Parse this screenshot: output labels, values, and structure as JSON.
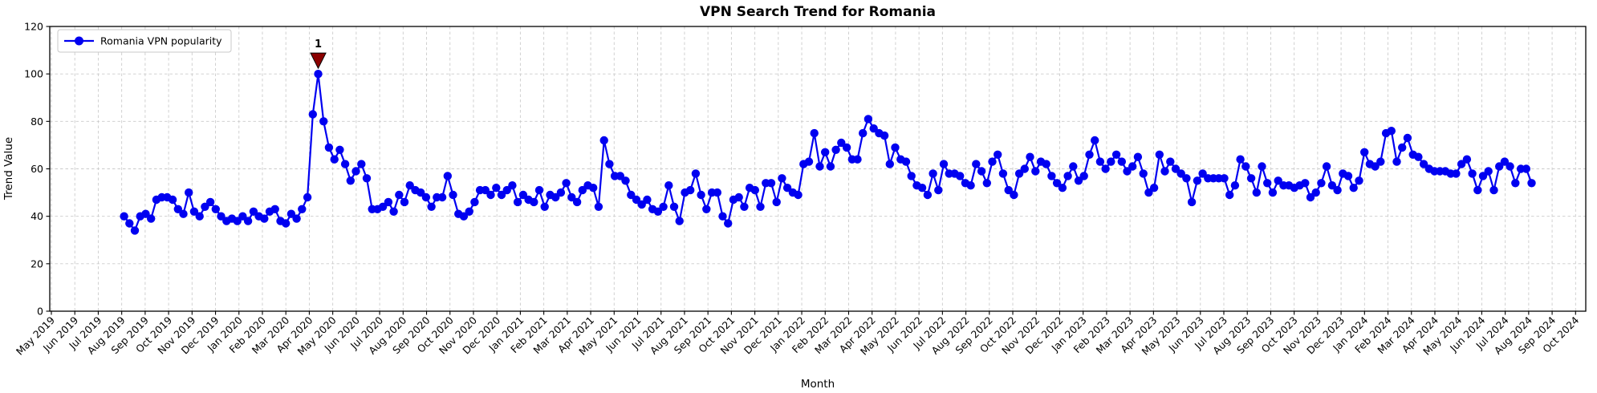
{
  "chart_data": {
    "type": "line",
    "title": "VPN Search Trend for Romania",
    "xlabel": "Month",
    "ylabel": "Trend Value",
    "grid": true,
    "legend_position": "upper left",
    "ylim": [
      0,
      120
    ],
    "yticks": [
      0,
      20,
      40,
      60,
      80,
      100,
      120
    ],
    "x_tick_labels": [
      "May 2019",
      "Jun 2019",
      "Jul 2019",
      "Aug 2019",
      "Sep 2019",
      "Oct 2019",
      "Nov 2019",
      "Dec 2019",
      "Jan 2020",
      "Feb 2020",
      "Mar 2020",
      "Apr 2020",
      "May 2020",
      "Jun 2020",
      "Jul 2020",
      "Aug 2020",
      "Sep 2020",
      "Oct 2020",
      "Nov 2020",
      "Dec 2020",
      "Jan 2021",
      "Feb 2021",
      "Mar 2021",
      "Apr 2021",
      "May 2021",
      "Jun 2021",
      "Jul 2021",
      "Aug 2021",
      "Sep 2021",
      "Oct 2021",
      "Nov 2021",
      "Dec 2021",
      "Jan 2022",
      "Feb 2022",
      "Mar 2022",
      "Apr 2022",
      "May 2022",
      "Jun 2022",
      "Jul 2022",
      "Aug 2022",
      "Sep 2022",
      "Oct 2022",
      "Nov 2022",
      "Dec 2022",
      "Jan 2023",
      "Feb 2023",
      "Mar 2023",
      "Apr 2023",
      "May 2023",
      "Jun 2023",
      "Jul 2023",
      "Aug 2023",
      "Sep 2023",
      "Oct 2023",
      "Nov 2023",
      "Dec 2023",
      "Jan 2024",
      "Feb 2024",
      "Mar 2024",
      "Apr 2024",
      "May 2024",
      "Jun 2024",
      "Jul 2024",
      "Aug 2024",
      "Sep 2024",
      "Oct 2024"
    ],
    "series": [
      {
        "name": "Romania VPN popularity",
        "color": "#0000f0",
        "marker": "circle",
        "cadence": "weekly",
        "first_point_month": "Aug 2019",
        "values": [
          40,
          37,
          34,
          40,
          41,
          39,
          47,
          48,
          48,
          47,
          43,
          41,
          50,
          42,
          40,
          44,
          46,
          43,
          40,
          38,
          39,
          38,
          40,
          38,
          42,
          40,
          39,
          42,
          43,
          38,
          37,
          41,
          39,
          43,
          48,
          83,
          100,
          80,
          69,
          64,
          68,
          62,
          55,
          59,
          62,
          56,
          43,
          43,
          44,
          46,
          42,
          49,
          46,
          53,
          51,
          50,
          48,
          44,
          48,
          48,
          57,
          49,
          41,
          40,
          42,
          46,
          51,
          51,
          49,
          52,
          49,
          51,
          53,
          46,
          49,
          47,
          46,
          51,
          44,
          49,
          48,
          50,
          54,
          48,
          46,
          51,
          53,
          52,
          44,
          72,
          62,
          57,
          57,
          55,
          49,
          47,
          45,
          47,
          43,
          42,
          44,
          53,
          44,
          38,
          50,
          51,
          58,
          49,
          43,
          50,
          50,
          40,
          37,
          47,
          48,
          44,
          52,
          51,
          44,
          54,
          54,
          46,
          56,
          52,
          50,
          49,
          62,
          63,
          75,
          61,
          67,
          61,
          68,
          71,
          69,
          64,
          64,
          75,
          81,
          77,
          75,
          74,
          62,
          69,
          64,
          63,
          57,
          53,
          52,
          49,
          58,
          51,
          62,
          58,
          58,
          57,
          54,
          53,
          62,
          59,
          54,
          63,
          66,
          58,
          51,
          49,
          58,
          60,
          65,
          59,
          63,
          62,
          57,
          54,
          52,
          57,
          61,
          55,
          57,
          66,
          72,
          63,
          60,
          63,
          66,
          63,
          59,
          61,
          65,
          58,
          50,
          52,
          66,
          59,
          63,
          60,
          58,
          56,
          46,
          55,
          58,
          56,
          56,
          56,
          56,
          49,
          53,
          64,
          61,
          56,
          50,
          61,
          54,
          50,
          55,
          53,
          53,
          52,
          53,
          54,
          48,
          50,
          54,
          61,
          53,
          51,
          58,
          57,
          52,
          55,
          67,
          62,
          61,
          63,
          75,
          76,
          63,
          69,
          73,
          66,
          65,
          62,
          60,
          59,
          59,
          59,
          58,
          58,
          62,
          64,
          58,
          51,
          57,
          59,
          51,
          61,
          63,
          61,
          54,
          60,
          60,
          54
        ]
      }
    ],
    "annotation": {
      "label": "1",
      "marker": "triangle-down",
      "color": "#8B0000",
      "at": "series-max"
    },
    "legend": {
      "label": "Romania VPN popularity"
    },
    "grid_color": "#cccccc",
    "spine_color": "#000000"
  }
}
